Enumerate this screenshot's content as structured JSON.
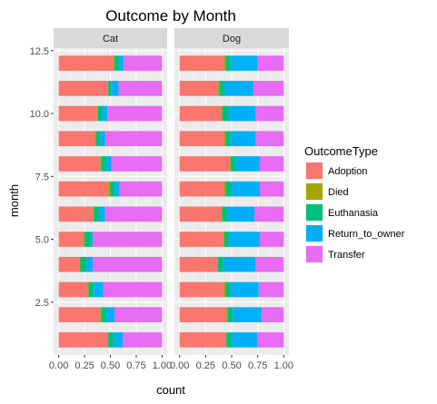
{
  "chart_data": {
    "type": "bar",
    "orientation": "horizontal",
    "stacked": true,
    "position": "fill",
    "title": "Outcome by Month",
    "xlabel": "count",
    "ylabel": "month",
    "xlim": [
      0,
      1
    ],
    "ylim": [
      0.4,
      12.6
    ],
    "x_ticks": [
      0,
      0.25,
      0.5,
      0.75,
      1
    ],
    "x_tick_labels": [
      "0.00",
      "0.25",
      "0.50",
      "0.75",
      "1.00"
    ],
    "y_ticks": [
      2.5,
      5.0,
      7.5,
      10.0,
      12.5
    ],
    "y_tick_labels": [
      "2.5",
      "5.0",
      "7.5",
      "10.0",
      "12.5"
    ],
    "months": [
      1,
      2,
      3,
      4,
      5,
      6,
      7,
      8,
      9,
      10,
      11,
      12
    ],
    "grid": true,
    "legend": {
      "title": "OutcomeType",
      "position": "right",
      "entries": [
        {
          "name": "Adoption",
          "color": "#F8766D"
        },
        {
          "name": "Died",
          "color": "#A3A500"
        },
        {
          "name": "Euthanasia",
          "color": "#00BF7D"
        },
        {
          "name": "Return_to_owner",
          "color": "#00B0F6"
        },
        {
          "name": "Transfer",
          "color": "#E76BF3"
        }
      ]
    },
    "panels": [
      {
        "label": "Cat",
        "series": [
          {
            "name": "Adoption",
            "values": [
              0.47,
              0.4,
              0.28,
              0.2,
              0.24,
              0.33,
              0.48,
              0.4,
              0.35,
              0.37,
              0.47,
              0.53
            ]
          },
          {
            "name": "Died",
            "values": [
              0.01,
              0.01,
              0.01,
              0.01,
              0.01,
              0.01,
              0.02,
              0.01,
              0.01,
              0.01,
              0.01,
              0.01
            ]
          },
          {
            "name": "Euthanasia",
            "values": [
              0.05,
              0.05,
              0.05,
              0.06,
              0.06,
              0.05,
              0.04,
              0.05,
              0.04,
              0.04,
              0.03,
              0.04
            ]
          },
          {
            "name": "Return_to_owner",
            "values": [
              0.09,
              0.08,
              0.09,
              0.06,
              0.02,
              0.06,
              0.05,
              0.05,
              0.05,
              0.05,
              0.07,
              0.05
            ]
          },
          {
            "name": "Transfer",
            "values": [
              0.38,
              0.46,
              0.57,
              0.67,
              0.67,
              0.55,
              0.41,
              0.49,
              0.55,
              0.53,
              0.42,
              0.37
            ]
          }
        ]
      },
      {
        "label": "Dog",
        "series": [
          {
            "name": "Adoption",
            "values": [
              0.44,
              0.45,
              0.43,
              0.36,
              0.42,
              0.4,
              0.43,
              0.48,
              0.43,
              0.4,
              0.37,
              0.43
            ]
          },
          {
            "name": "Died",
            "values": [
              0.01,
              0.01,
              0.01,
              0.01,
              0.01,
              0.01,
              0.01,
              0.01,
              0.01,
              0.01,
              0.01,
              0.01
            ]
          },
          {
            "name": "Euthanasia",
            "values": [
              0.05,
              0.05,
              0.05,
              0.05,
              0.05,
              0.05,
              0.06,
              0.05,
              0.05,
              0.06,
              0.05,
              0.05
            ]
          },
          {
            "name": "Return_to_owner",
            "values": [
              0.25,
              0.28,
              0.27,
              0.31,
              0.29,
              0.26,
              0.27,
              0.23,
              0.24,
              0.26,
              0.28,
              0.26
            ]
          },
          {
            "name": "Transfer",
            "values": [
              0.25,
              0.21,
              0.24,
              0.27,
              0.23,
              0.28,
              0.23,
              0.23,
              0.27,
              0.27,
              0.29,
              0.25
            ]
          }
        ]
      }
    ]
  }
}
